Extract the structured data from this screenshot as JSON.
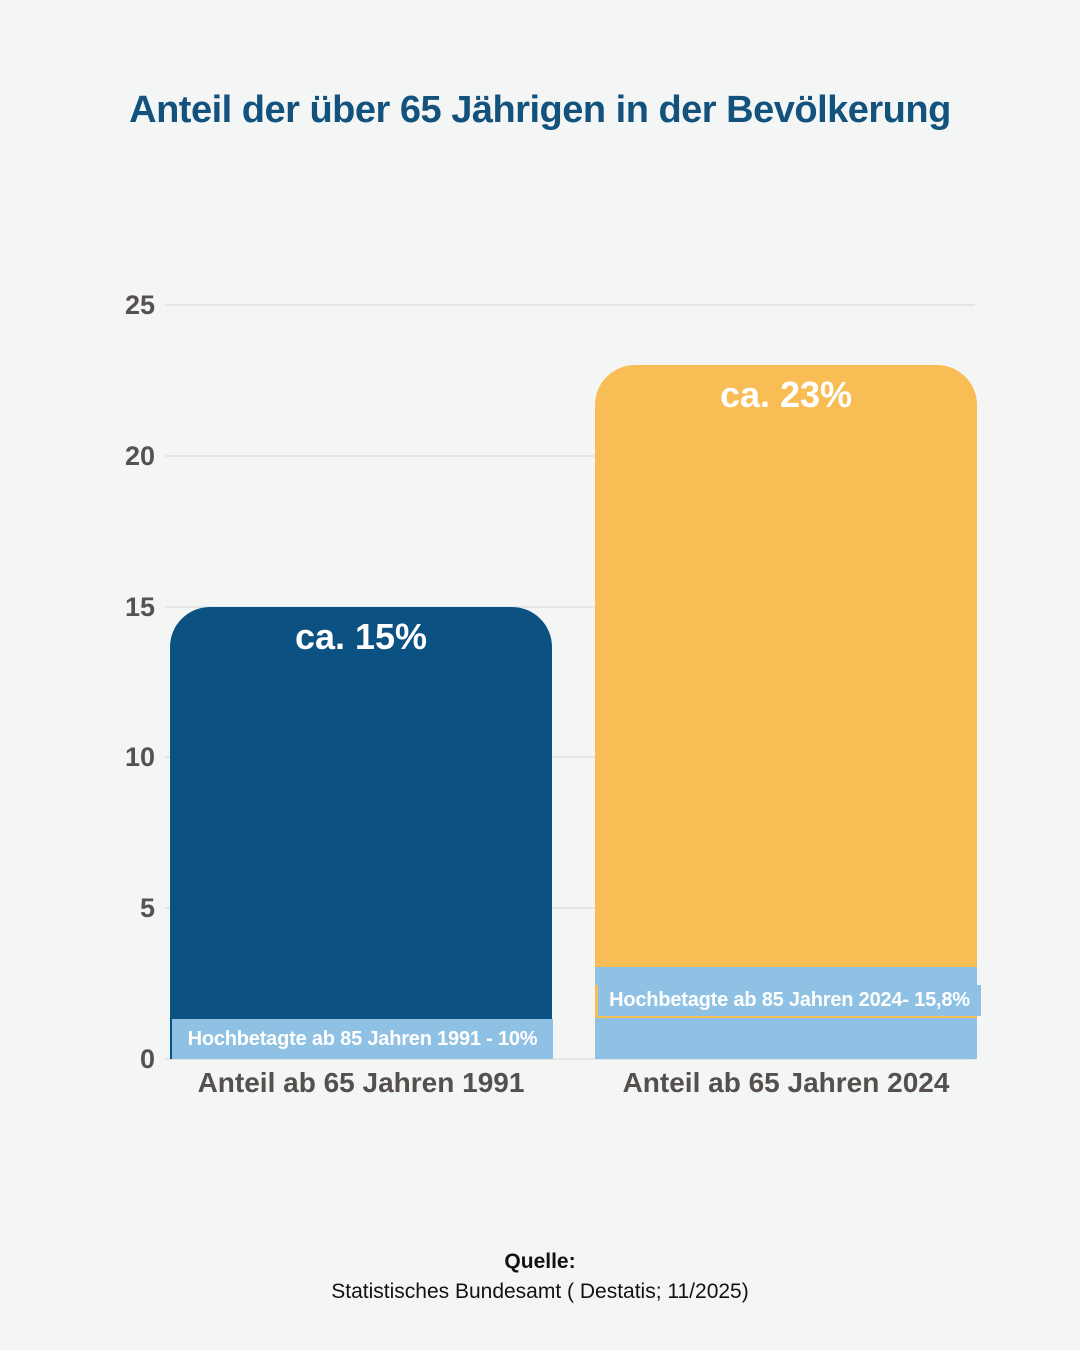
{
  "title": "Anteil der über 65 Jährigen in der Bevölkerung",
  "chart_data": {
    "type": "bar",
    "title": "Anteil der über 65 Jährigen in der Bevölkerung",
    "categories": [
      "Anteil ab 65 Jahren 1991",
      "Anteil ab 65 Jahren 2024"
    ],
    "series": [
      {
        "name": "Anteil ab 65 Jahren",
        "values": [
          15,
          23
        ],
        "value_labels": [
          "ca. 15%",
          "ca. 23%"
        ],
        "colors": [
          "#0B5283",
          "#F8BD55"
        ]
      },
      {
        "name": "Hochbetagte ab 85 Jahren",
        "labels": [
          "Hochbetagte ab 85 Jahren 1991 - 10%",
          "Hochbetagte ab 85 Jahren 2024- 15,8%"
        ],
        "color": "#8EC1E4"
      }
    ],
    "xlabel": "",
    "ylabel": "",
    "ylim": [
      0,
      25
    ],
    "y_ticks": [
      0,
      5,
      10,
      15,
      20,
      25
    ],
    "grid": true,
    "legend": false
  },
  "bars": [
    {
      "category": "Anteil ab 65 Jahren 1991",
      "value_label": "ca. 15%",
      "band_label": "Hochbetagte ab 85 Jahren 1991 - 10%"
    },
    {
      "category": "Anteil ab 65 Jahren 2024",
      "value_label": "ca. 23%",
      "band_label": "Hochbetagte ab 85 Jahren 2024- 15,8%"
    }
  ],
  "source": {
    "label": "Quelle:",
    "text": "Statistisches Bundesamt ( Destatis; 11/2025)"
  },
  "colors": {
    "background": "#F4F6F5",
    "title": "#14527E",
    "bar_1991": "#0B5283",
    "bar_2024": "#F8BD55",
    "band": "#8EC1E4",
    "gridline": "#E3E6E4",
    "tick_text": "#575150",
    "x_label_text": "#55504D"
  }
}
